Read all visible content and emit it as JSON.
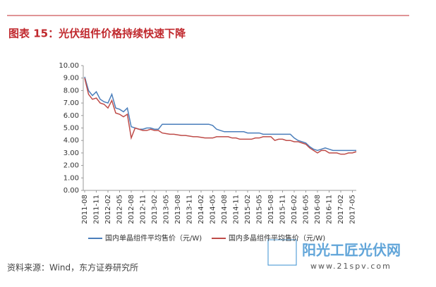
{
  "chart_data": {
    "type": "line",
    "title": "图表 15：光伏组件价格持续快速下降",
    "source": "资料来源：Wind，东方证券研究所",
    "watermark": {
      "name": "阳光工匠光伏网",
      "url": "www.21spv.com"
    },
    "categories": [
      "2011-08",
      null,
      null,
      "2011-11",
      null,
      null,
      "2012-02",
      null,
      null,
      "2012-05",
      null,
      null,
      "2012-08",
      null,
      null,
      "2012-11",
      null,
      null,
      "2013-02",
      null,
      null,
      "2013-05",
      null,
      null,
      "2013-08",
      null,
      null,
      "2013-11",
      null,
      null,
      "2014-02",
      null,
      null,
      "2014-05",
      null,
      null,
      "2014-08",
      null,
      null,
      "2014-11",
      null,
      null,
      "2015-02",
      null,
      null,
      "2015-05",
      null,
      null,
      "2015-08",
      null,
      null,
      "2015-11",
      null,
      null,
      "2016-02",
      null,
      null,
      "2016-05",
      null,
      null,
      "2016-08",
      null,
      null,
      "2016-11",
      null,
      null,
      "2017-02",
      null,
      null,
      "2017-05",
      null
    ],
    "series": [
      {
        "name": "国内单晶组件平均售价（元/W)",
        "color": "#4a7ebb",
        "values": [
          9.1,
          8.0,
          7.6,
          7.9,
          7.3,
          7.1,
          7.0,
          7.7,
          6.6,
          6.5,
          6.3,
          6.6,
          5.1,
          5.0,
          4.9,
          4.9,
          5.0,
          5.0,
          4.9,
          4.9,
          5.3,
          5.3,
          5.3,
          5.3,
          5.3,
          5.3,
          5.3,
          5.3,
          5.3,
          5.3,
          5.3,
          5.3,
          5.3,
          5.2,
          4.9,
          4.8,
          4.7,
          4.7,
          4.7,
          4.7,
          4.7,
          4.7,
          4.6,
          4.6,
          4.6,
          4.6,
          4.5,
          4.5,
          4.5,
          4.5,
          4.5,
          4.5,
          4.5,
          4.5,
          4.2,
          4.0,
          3.9,
          3.8,
          3.5,
          3.3,
          3.2,
          3.3,
          3.4,
          3.3,
          3.2,
          3.2,
          3.2,
          3.2,
          3.2,
          3.2,
          3.2
        ]
      },
      {
        "name": "国内多晶组件平均售价（元/W)",
        "color": "#be4b48",
        "values": [
          9.0,
          7.7,
          7.3,
          7.4,
          7.0,
          6.9,
          6.6,
          7.2,
          6.2,
          6.1,
          5.9,
          6.1,
          4.2,
          5.0,
          4.9,
          4.8,
          4.8,
          4.9,
          4.8,
          4.8,
          4.6,
          4.55,
          4.5,
          4.5,
          4.45,
          4.4,
          4.4,
          4.35,
          4.3,
          4.3,
          4.25,
          4.2,
          4.2,
          4.2,
          4.3,
          4.3,
          4.3,
          4.3,
          4.2,
          4.2,
          4.1,
          4.1,
          4.1,
          4.1,
          4.2,
          4.2,
          4.3,
          4.3,
          4.3,
          4.0,
          4.1,
          4.1,
          4.0,
          4.0,
          3.9,
          3.9,
          3.8,
          3.7,
          3.4,
          3.2,
          3.0,
          3.2,
          3.2,
          3.0,
          3.0,
          3.0,
          2.9,
          2.9,
          3.0,
          3.0,
          3.1
        ]
      }
    ],
    "ylim": [
      0,
      10
    ],
    "yticks": [
      {
        "value": 0,
        "label": "0.00"
      },
      {
        "value": 1,
        "label": "1.00"
      },
      {
        "value": 2,
        "label": "2.00"
      },
      {
        "value": 3,
        "label": "3.00"
      },
      {
        "value": 4,
        "label": "4.00"
      },
      {
        "value": 5,
        "label": "5.00"
      },
      {
        "value": 6,
        "label": "6.00"
      },
      {
        "value": 7,
        "label": "7.00"
      },
      {
        "value": 8,
        "label": "8.00"
      },
      {
        "value": 9,
        "label": "9.00"
      },
      {
        "value": 10,
        "label": "10.00"
      }
    ],
    "grid": false,
    "legend": "bottom"
  }
}
